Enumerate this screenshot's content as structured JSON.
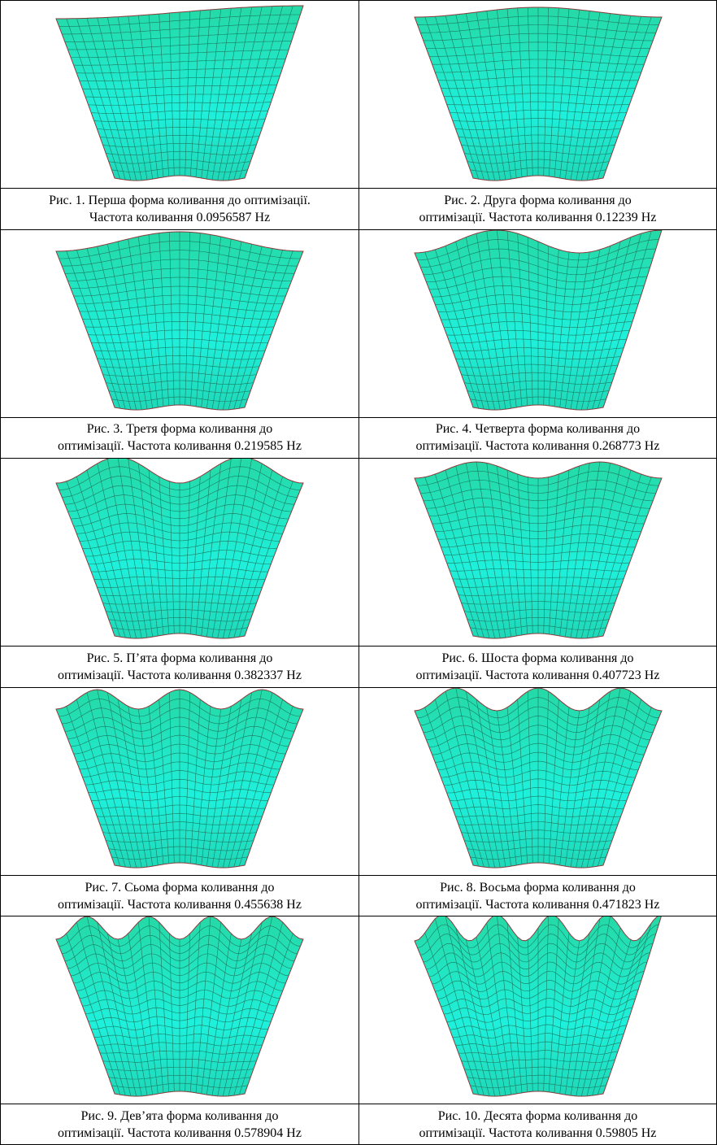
{
  "figures": [
    {
      "caption": [
        "Рис. 1. Перша форма коливання до оптимізації.",
        "Частота коливання  0.0956587 Hz"
      ]
    },
    {
      "caption": [
        "Рис. 2. Друга форма коливання до",
        "оптимізації. Частота коливання 0.12239 Hz"
      ]
    },
    {
      "caption": [
        "Рис. 3. Третя форма коливання до",
        "оптимізації. Частота коливання  0.219585 Hz"
      ]
    },
    {
      "caption": [
        "Рис. 4. Четверта форма коливання до",
        "оптимізації. Частота коливання 0.268773 Hz"
      ]
    },
    {
      "caption": [
        "Рис. 5. П’ята форма коливання до",
        "оптимізації. Частота коливання 0.382337 Hz"
      ]
    },
    {
      "caption": [
        "Рис. 6. Шоста форма коливання до",
        "оптимізації. Частота коливання 0.407723 Hz"
      ]
    },
    {
      "caption": [
        "Рис. 7. Сьома форма коливання до",
        "оптимізації. Частота коливання 0.455638 Hz"
      ]
    },
    {
      "caption": [
        "Рис. 8. Восьма форма коливання до",
        "оптимізації. Частота коливання 0.471823 Hz"
      ]
    },
    {
      "caption": [
        "Рис. 9. Дев’ята форма коливання до",
        "оптимізації. Частота коливання 0.578904 Hz"
      ]
    },
    {
      "caption": [
        "Рис. 10. Десята форма коливання до",
        "оптимізації. Частота коливання 0.59805 Hz"
      ]
    }
  ]
}
